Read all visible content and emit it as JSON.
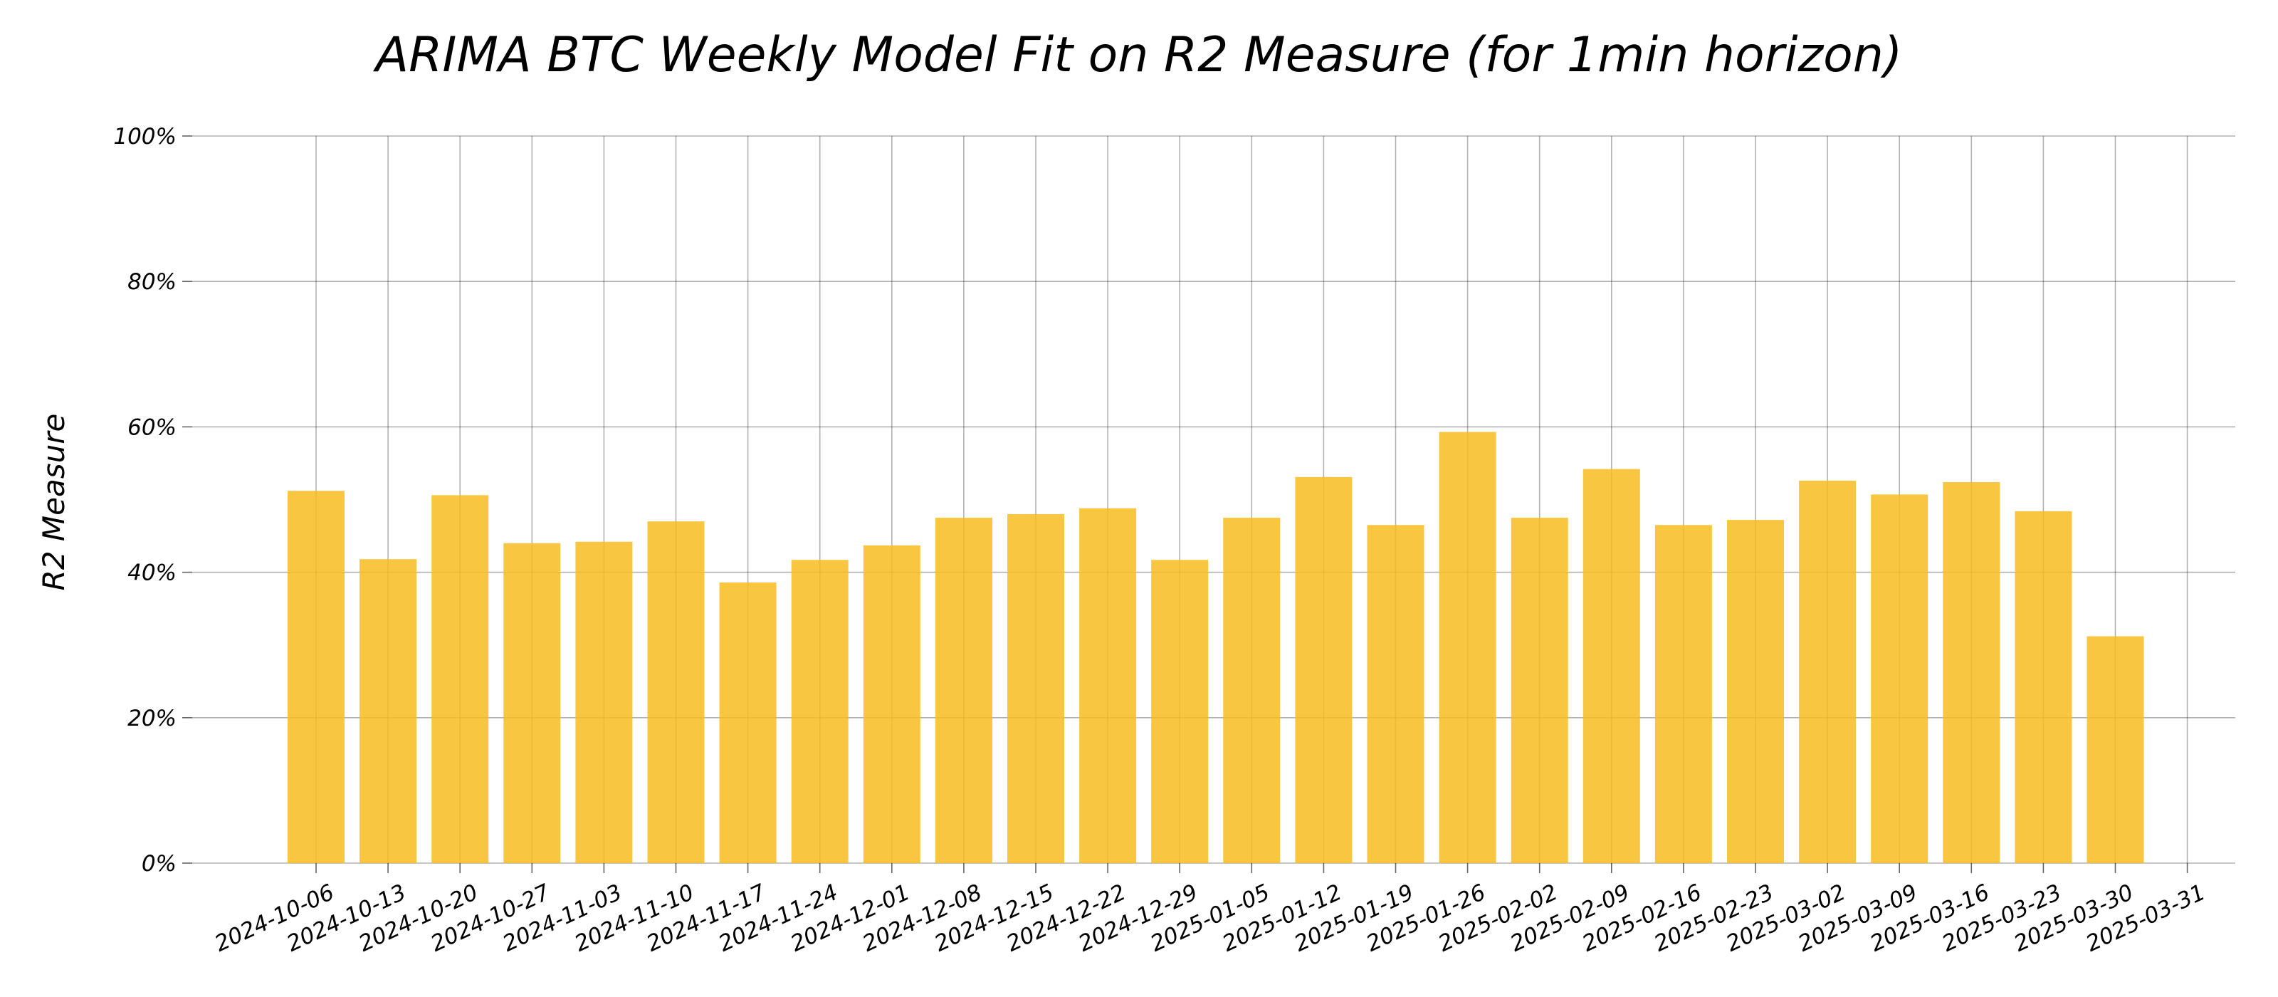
{
  "chart_data": {
    "type": "bar",
    "title": "ARIMA BTC Weekly Model Fit on R2 Measure (for 1min horizon)",
    "xlabel": "",
    "ylabel": "R2 Measure",
    "x_ticks": [
      "2024-10-06",
      "2024-10-13",
      "2024-10-20",
      "2024-10-27",
      "2024-11-03",
      "2024-11-10",
      "2024-11-17",
      "2024-11-24",
      "2024-12-01",
      "2024-12-08",
      "2024-12-15",
      "2024-12-22",
      "2024-12-29",
      "2025-01-05",
      "2025-01-12",
      "2025-01-19",
      "2025-01-26",
      "2025-02-02",
      "2025-02-09",
      "2025-02-16",
      "2025-02-23",
      "2025-03-02",
      "2025-03-09",
      "2025-03-16",
      "2025-03-23",
      "2025-03-30",
      "2025-03-31"
    ],
    "categories": [
      "2024-10-06",
      "2024-10-13",
      "2024-10-20",
      "2024-10-27",
      "2024-11-03",
      "2024-11-10",
      "2024-11-17",
      "2024-11-24",
      "2024-12-01",
      "2024-12-08",
      "2024-12-15",
      "2024-12-22",
      "2024-12-29",
      "2025-01-05",
      "2025-01-12",
      "2025-01-19",
      "2025-01-26",
      "2025-02-02",
      "2025-02-09",
      "2025-02-16",
      "2025-02-23",
      "2025-03-02",
      "2025-03-09",
      "2025-03-16",
      "2025-03-23",
      "2025-03-30"
    ],
    "values": [
      51.2,
      41.8,
      50.6,
      44.0,
      44.2,
      47.0,
      38.6,
      41.7,
      43.7,
      47.5,
      48.0,
      48.8,
      41.7,
      47.5,
      53.1,
      46.5,
      59.3,
      47.5,
      54.2,
      46.5,
      47.2,
      52.6,
      50.7,
      52.4,
      48.4,
      31.2
    ],
    "y_ticks": [
      "0%",
      "20%",
      "40%",
      "60%",
      "80%",
      "100%"
    ],
    "ylim": [
      0,
      100
    ],
    "grid": true,
    "legend": "none",
    "bar_color": "#f7bc1e",
    "bar_opacity": 0.85
  }
}
